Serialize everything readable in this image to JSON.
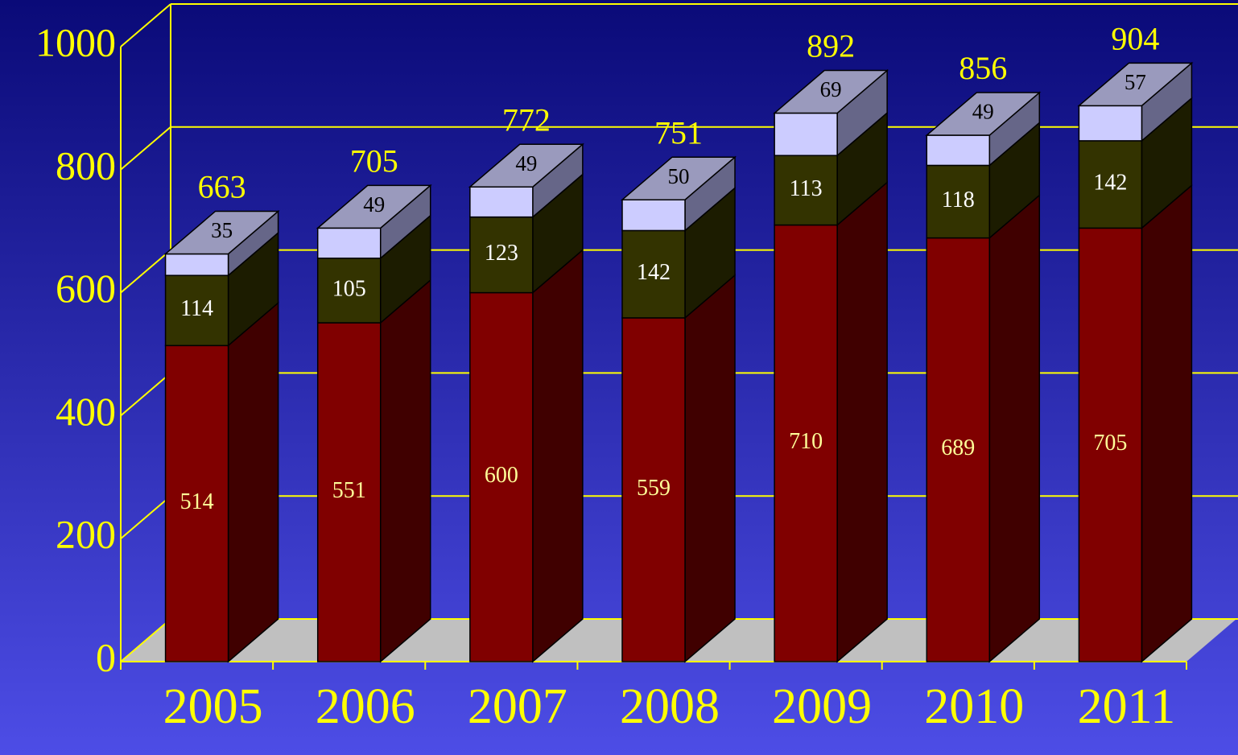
{
  "chart_data": {
    "type": "bar3d_stacked",
    "categories": [
      "2005",
      "2006",
      "2007",
      "2008",
      "2009",
      "2010",
      "2011"
    ],
    "series": [
      {
        "color": "#800000",
        "side_color": "#400000",
        "label_color": "#ffff99",
        "values": [
          514,
          551,
          600,
          559,
          710,
          689,
          705
        ]
      },
      {
        "color": "#333300",
        "side_color": "#1c1c00",
        "label_color": "#ffffff",
        "values": [
          114,
          105,
          123,
          142,
          113,
          118,
          142
        ]
      },
      {
        "color": "#ccccff",
        "side_color": "#666688",
        "top_color": "#9a9abd",
        "label_color": "#000000",
        "values": [
          35,
          49,
          49,
          50,
          69,
          49,
          57
        ]
      }
    ],
    "totals": [
      663,
      705,
      772,
      751,
      892,
      856,
      904
    ],
    "ylim": [
      0,
      1000
    ],
    "yticks": [
      0,
      200,
      400,
      600,
      800,
      1000
    ],
    "grid": true,
    "axis_color": "#ffff00",
    "floor_color": "#c0c0c0"
  }
}
